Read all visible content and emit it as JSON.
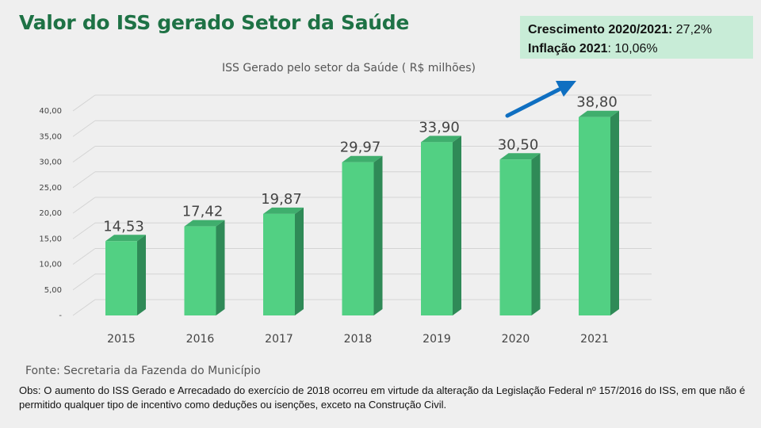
{
  "page": {
    "title": "Valor do ISS gerado Setor da Saúde",
    "stats": {
      "growth_label": "Crescimento 2020/2021:",
      "growth_value": " 27,2%",
      "inflation_label": "Inflação 2021",
      "inflation_value": ": 10,06%"
    },
    "source": "Fonte: Secretaria da Fazenda do Município",
    "note": "Obs: O aumento do ISS Gerado e Arrecadado do exercício de 2018 ocorreu em virtude da alteração da Legislação Federal nº 157/2016 do ISS, em que não é permitido qualquer tipo de incentivo como deduções ou isenções, exceto na Construção Civil."
  },
  "colors": {
    "bar_front": "#52d083",
    "bar_side": "#2f8a57",
    "bar_top": "#3fae6d",
    "arrow": "#0f6fc1",
    "grid": "#d4d4d4"
  },
  "chart_data": {
    "type": "bar",
    "title": "ISS Gerado pelo setor da Saúde ( R$ milhões)",
    "categories": [
      "2015",
      "2016",
      "2017",
      "2018",
      "2019",
      "2020",
      "2021"
    ],
    "values": [
      14.53,
      17.42,
      19.87,
      29.97,
      33.9,
      30.5,
      38.8
    ],
    "value_labels": [
      "14,53",
      "17,42",
      "19,87",
      "29,97",
      "33,90",
      "30,50",
      "38,80"
    ],
    "ylim": [
      0,
      40
    ],
    "yticks": [
      "-",
      "5,00",
      "10,00",
      "15,00",
      "20,00",
      "25,00",
      "30,00",
      "35,00",
      "40,00"
    ],
    "grid": true,
    "style": "3d-column",
    "annotation": "trend-arrow-2020-2021"
  }
}
